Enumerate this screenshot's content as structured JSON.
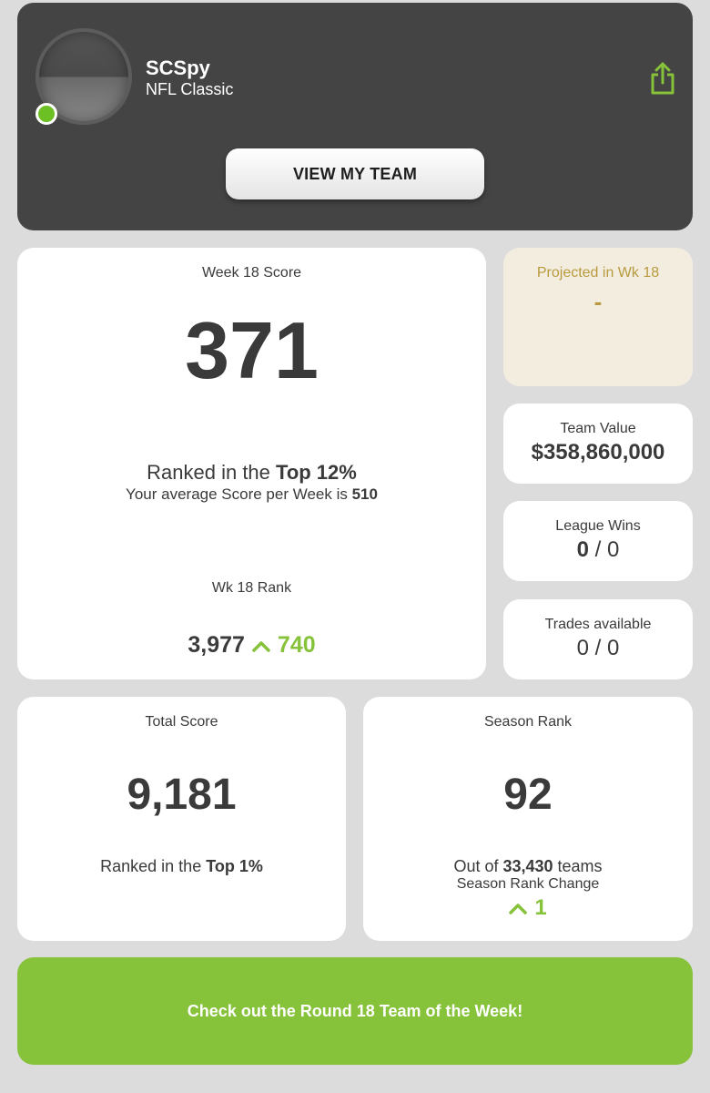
{
  "header": {
    "user_name": "SCSpy",
    "league_name": "NFL Classic",
    "view_team_label": "VIEW MY TEAM",
    "status_color": "#6cc024",
    "share_icon": "share-icon"
  },
  "week_card": {
    "label": "Week 18 Score",
    "score": "371",
    "rank_prefix": "Ranked in the ",
    "rank_highlight": "Top 12%",
    "avg_prefix": "Your average Score per Week is ",
    "avg_value": "510",
    "wk_rank_label": "Wk 18 Rank",
    "wk_rank_value": "3,977",
    "wk_rank_change": "740"
  },
  "projected": {
    "label": "Projected in Wk 18",
    "value": "-"
  },
  "team_value": {
    "label": "Team Value",
    "value": "$358,860,000"
  },
  "league_wins": {
    "label": "League Wins",
    "wins": "0",
    "sep": " / ",
    "total": "0"
  },
  "trades": {
    "label": "Trades available",
    "value": "0 / 0"
  },
  "total_score": {
    "label": "Total Score",
    "value": "9,181",
    "rank_prefix": "Ranked in the ",
    "rank_highlight": "Top 1%"
  },
  "season_rank": {
    "label": "Season Rank",
    "value": "92",
    "out_of_prefix": "Out of ",
    "out_of_count": "33,430",
    "out_of_suffix": " teams",
    "change_label": "Season Rank Change",
    "change_value": "1"
  },
  "cta": {
    "label": "Check out the Round 18 Team of the Week!"
  },
  "colors": {
    "accent_green": "#86c23a",
    "header_bg": "#444444",
    "projected_bg": "#f3ede0",
    "projected_text": "#b89a3e"
  }
}
